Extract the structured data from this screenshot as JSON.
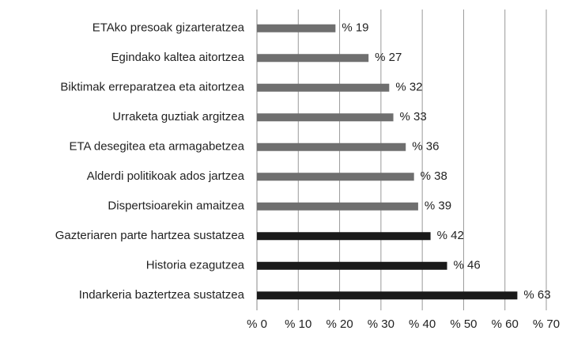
{
  "chart_data": {
    "type": "hbar",
    "categories": [
      "ETAko presoak gizarteratzea",
      "Egindako kaltea aitortzea",
      "Biktimak erreparatzea eta aitortzea",
      "Urraketa guztiak argitzea",
      "ETA desegitea eta armagabetzea",
      "Alderdi politikoak ados jartzea",
      "Dispertsioarekin amaitzea",
      "Gazteriaren parte hartzea sustatzea",
      "Historia ezagutzea",
      "Indarkeria baztertzea sustatzea"
    ],
    "values": [
      19,
      27,
      32,
      33,
      36,
      38,
      39,
      42,
      46,
      63
    ],
    "value_labels": [
      "% 19",
      "% 27",
      "% 32",
      "% 33",
      "% 36",
      "% 38",
      "% 39",
      "% 42",
      "% 46",
      "% 63"
    ],
    "colors": [
      "#6f6f6f",
      "#6f6f6f",
      "#6f6f6f",
      "#6f6f6f",
      "#6f6f6f",
      "#6f6f6f",
      "#6f6f6f",
      "#1a1a1a",
      "#1a1a1a",
      "#1a1a1a"
    ],
    "xlim": [
      0,
      70
    ],
    "xticks": [
      {
        "value": 0,
        "label": "% 0"
      },
      {
        "value": 10,
        "label": "% 10"
      },
      {
        "value": 20,
        "label": "% 20"
      },
      {
        "value": 30,
        "label": "% 30"
      },
      {
        "value": 40,
        "label": "% 40"
      },
      {
        "value": 50,
        "label": "% 50"
      },
      {
        "value": 60,
        "label": "% 60"
      },
      {
        "value": 70,
        "label": "% 70"
      }
    ],
    "grid": true
  }
}
